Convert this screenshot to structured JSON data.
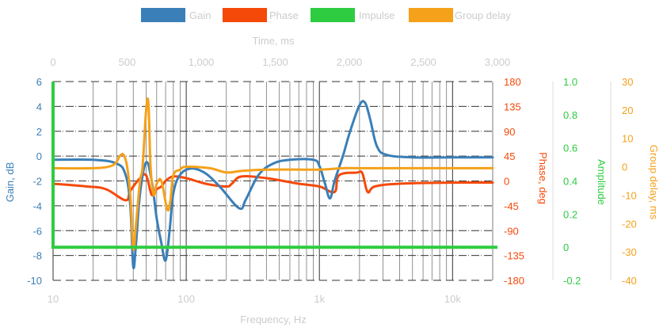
{
  "chart_data": {
    "type": "line",
    "legend": {
      "placement": "top-center",
      "items": [
        {
          "label": "Gain",
          "color": "#3a7fb8"
        },
        {
          "label": "Phase",
          "color": "#f5490a"
        },
        {
          "label": "Impulse",
          "color": "#2ecc40"
        },
        {
          "label": "Group delay",
          "color": "#f5a11a"
        }
      ]
    },
    "axes": {
      "x_bottom": {
        "label": "Frequency, Hz",
        "scale": "log",
        "range": [
          10,
          20000
        ],
        "ticks": [
          "10",
          "100",
          "1k",
          "10k"
        ]
      },
      "x_top": {
        "label": "Time, ms",
        "scale": "linear",
        "range": [
          0,
          3000
        ],
        "ticks": [
          "0",
          "500",
          "1,000",
          "1,500",
          "2,000",
          "2,500",
          "3,000"
        ]
      },
      "gain": {
        "label": "Gain, dB",
        "color": "#3a7fb8",
        "range": [
          -10,
          6
        ],
        "ticks": [
          "6",
          "4",
          "2",
          "0",
          "-2",
          "-4",
          "-6",
          "-8",
          "-10"
        ]
      },
      "phase": {
        "label": "Phase, deg",
        "color": "#f5490a",
        "range": [
          -180,
          180
        ],
        "ticks": [
          "180",
          "135",
          "90",
          "45",
          "0",
          "-45",
          "-90",
          "-135",
          "-180"
        ]
      },
      "amplitude": {
        "label": "Amplitude",
        "color": "#2ecc40",
        "range": [
          -0.2,
          1.0
        ],
        "ticks": [
          "1.0",
          "0.8",
          "0.6",
          "0.4",
          "0.2",
          "0",
          "-0.2"
        ]
      },
      "group_delay": {
        "label": "Group delay, ms",
        "color": "#f5a11a",
        "range": [
          -40,
          30
        ],
        "ticks": [
          "30",
          "20",
          "10",
          "0",
          "-10",
          "-20",
          "-30",
          "-40"
        ]
      }
    },
    "grid": true,
    "series": [
      {
        "name": "Gain",
        "axis": "gain",
        "x_axis": "frequency",
        "points": [
          [
            10,
            -0.3
          ],
          [
            20,
            -0.3
          ],
          [
            30,
            -0.6
          ],
          [
            35,
            -1.5
          ],
          [
            38,
            -4
          ],
          [
            40,
            -8.9
          ],
          [
            42,
            -7
          ],
          [
            45,
            -3
          ],
          [
            50,
            -0.5
          ],
          [
            55,
            -2
          ],
          [
            60,
            -5
          ],
          [
            65,
            -7
          ],
          [
            70,
            -8.4
          ],
          [
            75,
            -6
          ],
          [
            80,
            -3
          ],
          [
            90,
            -1.5
          ],
          [
            110,
            -1
          ],
          [
            140,
            -1.4
          ],
          [
            180,
            -2.5
          ],
          [
            250,
            -4.2
          ],
          [
            280,
            -3.5
          ],
          [
            350,
            -1.5
          ],
          [
            450,
            -0.6
          ],
          [
            600,
            -0.3
          ],
          [
            900,
            -0.3
          ],
          [
            1000,
            -0.8
          ],
          [
            1100,
            -2.2
          ],
          [
            1200,
            -3.4
          ],
          [
            1300,
            -2
          ],
          [
            1500,
            0
          ],
          [
            1700,
            2
          ],
          [
            2000,
            4.1
          ],
          [
            2200,
            4.3
          ],
          [
            2400,
            3
          ],
          [
            2700,
            0.8
          ],
          [
            3200,
            0.1
          ],
          [
            5000,
            -0.1
          ],
          [
            10000,
            -0.1
          ],
          [
            20000,
            -0.1
          ]
        ]
      },
      {
        "name": "Phase",
        "axis": "phase",
        "x_axis": "frequency",
        "points": [
          [
            10,
            -5
          ],
          [
            18,
            -10
          ],
          [
            25,
            -15
          ],
          [
            35,
            -35
          ],
          [
            38,
            -18
          ],
          [
            45,
            5
          ],
          [
            50,
            10
          ],
          [
            55,
            -25
          ],
          [
            60,
            -15
          ],
          [
            65,
            -10
          ],
          [
            70,
            0
          ],
          [
            80,
            8
          ],
          [
            100,
            5
          ],
          [
            140,
            -5
          ],
          [
            200,
            -10
          ],
          [
            220,
            -5
          ],
          [
            260,
            8
          ],
          [
            400,
            5
          ],
          [
            700,
            -5
          ],
          [
            1000,
            -10
          ],
          [
            1300,
            -20
          ],
          [
            1400,
            10
          ],
          [
            1900,
            15
          ],
          [
            2100,
            14
          ],
          [
            2300,
            -20
          ],
          [
            2600,
            -10
          ],
          [
            4000,
            -5
          ],
          [
            10000,
            -3
          ],
          [
            20000,
            -3
          ]
        ]
      },
      {
        "name": "Impulse",
        "axis": "amplitude",
        "x_axis": "time",
        "points": [
          [
            0,
            1.0
          ],
          [
            0,
            0
          ],
          [
            3000,
            0
          ]
        ]
      },
      {
        "name": "Group delay",
        "axis": "group_delay",
        "x_axis": "frequency",
        "points": [
          [
            10,
            -0.5
          ],
          [
            20,
            -0.5
          ],
          [
            28,
            0.5
          ],
          [
            32,
            4
          ],
          [
            34,
            4
          ],
          [
            36,
            0
          ],
          [
            38,
            -10
          ],
          [
            40,
            -29
          ],
          [
            42,
            -20
          ],
          [
            45,
            -5
          ],
          [
            47,
            0
          ],
          [
            50,
            20
          ],
          [
            52,
            22
          ],
          [
            54,
            0
          ],
          [
            57,
            -10
          ],
          [
            60,
            -6
          ],
          [
            65,
            -5
          ],
          [
            72,
            -15
          ],
          [
            76,
            -12
          ],
          [
            80,
            -3
          ],
          [
            90,
            -1
          ],
          [
            100,
            0
          ],
          [
            150,
            -0.5
          ],
          [
            200,
            -2
          ],
          [
            260,
            -1.5
          ],
          [
            400,
            -1
          ],
          [
            1000,
            -1
          ],
          [
            1500,
            -0.5
          ],
          [
            2000,
            -0.5
          ],
          [
            5000,
            -0.5
          ],
          [
            20000,
            -0.5
          ]
        ]
      }
    ]
  }
}
